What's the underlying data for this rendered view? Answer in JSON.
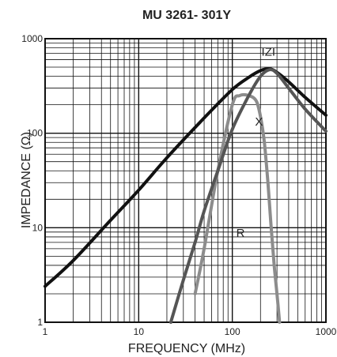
{
  "chart_data": {
    "type": "line",
    "title": "MU 3261-  301Y",
    "xlabel": "FREQUENCY (MHz)",
    "ylabel": "IMPEDANCE (Ω)",
    "x_scale": "log",
    "y_scale": "log",
    "xlim": [
      1,
      1000
    ],
    "ylim": [
      1,
      1000
    ],
    "grid": true,
    "x_ticks": [
      {
        "value": 1,
        "label": "1"
      },
      {
        "value": 10,
        "label": "10"
      },
      {
        "value": 100,
        "label": "100"
      },
      {
        "value": 1000,
        "label": "1000"
      }
    ],
    "y_ticks": [
      {
        "value": 1,
        "label": "1"
      },
      {
        "value": 10,
        "label": "10"
      },
      {
        "value": 100,
        "label": "100"
      },
      {
        "value": 1000,
        "label": "1000"
      }
    ],
    "series": [
      {
        "name": "IZI",
        "color": "#111111",
        "x": [
          1,
          2,
          5,
          10,
          20,
          50,
          100,
          150,
          200,
          250,
          300,
          400,
          600,
          1000
        ],
        "y": [
          2.4,
          4.5,
          12,
          25,
          55,
          145,
          290,
          390,
          460,
          480,
          440,
          350,
          240,
          155
        ]
      },
      {
        "name": "X",
        "color": "#8c8c8c",
        "x": [
          40,
          50,
          70,
          100,
          120,
          150,
          180,
          200,
          220,
          240,
          260,
          280,
          300,
          320
        ],
        "y": [
          2,
          6,
          40,
          200,
          250,
          250,
          220,
          150,
          80,
          30,
          10,
          4,
          2,
          1
        ]
      },
      {
        "name": "R",
        "color": "#555555",
        "x": [
          22,
          30,
          40,
          50,
          70,
          100,
          150,
          200,
          250,
          300,
          400,
          600,
          1000
        ],
        "y": [
          1,
          2.8,
          7,
          15,
          40,
          110,
          250,
          400,
          470,
          430,
          300,
          180,
          105
        ]
      }
    ]
  }
}
